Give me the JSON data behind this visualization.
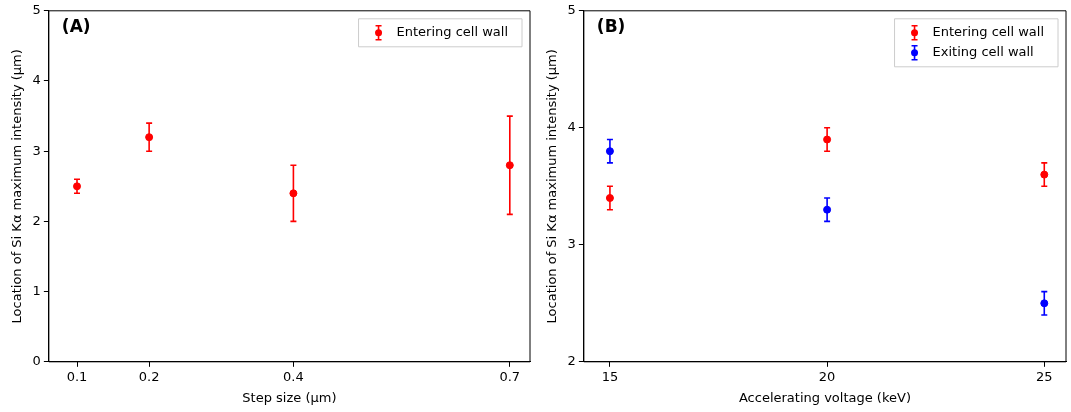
{
  "chart_data": [
    {
      "type": "scatter",
      "xlabel": "Step size (μm)",
      "ylabel": "Location of Si Kα maximum intensity (μm)",
      "annotations": [
        "(A)"
      ],
      "x": [
        0.1,
        0.2,
        0.4,
        0.7
      ],
      "xlim": [
        0.061,
        0.728
      ],
      "xticks": [
        0.1,
        0.2,
        0.4,
        0.7
      ],
      "ylim": [
        0,
        5
      ],
      "yticks": [
        0,
        1,
        2,
        3,
        4,
        5
      ],
      "series": [
        {
          "name": "Entering cell wall",
          "color": "#ff0000",
          "values": [
            2.5,
            3.2,
            2.4,
            2.8
          ],
          "errors": [
            0.1,
            0.2,
            0.4,
            0.7
          ]
        }
      ],
      "marker": "circle",
      "legend": "top right",
      "grid": false
    },
    {
      "type": "scatter",
      "xlabel": "Accelerating voltage (keV)",
      "ylabel": "Location of Si Kα maximum intensity (μm)",
      "annotations": [
        "(B)"
      ],
      "x": [
        15,
        20,
        25
      ],
      "xlim": [
        14.4,
        25.5
      ],
      "xticks": [
        15,
        20,
        25
      ],
      "ylim": [
        2,
        5
      ],
      "yticks": [
        2,
        3,
        4,
        5
      ],
      "series": [
        {
          "name": "Entering cell wall",
          "color": "#ff0000",
          "values": [
            3.4,
            3.9,
            3.6
          ],
          "errors": [
            0.1,
            0.1,
            0.1
          ]
        },
        {
          "name": "Exiting cell wall",
          "color": "#0000ff",
          "values": [
            3.8,
            3.3,
            2.5
          ],
          "errors": [
            0.1,
            0.1,
            0.1
          ]
        }
      ],
      "marker": "circle",
      "legend": "top right",
      "grid": false
    }
  ]
}
